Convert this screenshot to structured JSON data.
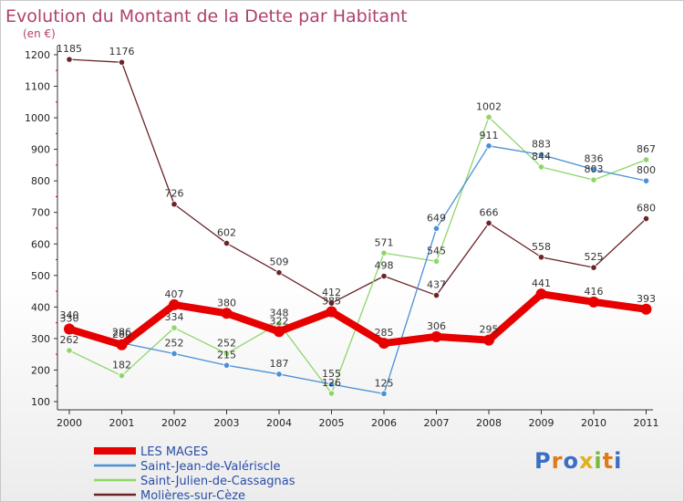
{
  "chart_data": {
    "type": "line",
    "title": "Evolution du Montant de la Dette par Habitant",
    "subtitle": "(en €)",
    "xlabel": "",
    "ylabel": "",
    "categories": [
      "2000",
      "2001",
      "2002",
      "2003",
      "2004",
      "2005",
      "2006",
      "2007",
      "2008",
      "2009",
      "2010",
      "2011"
    ],
    "y_ticks": [
      100,
      200,
      300,
      400,
      500,
      600,
      700,
      800,
      900,
      1000,
      1100,
      1200
    ],
    "ylim": [
      100,
      1200
    ],
    "grid": false,
    "legend_placement": "bottom-left",
    "series": [
      {
        "name": "LES MAGES",
        "color": "#e60000",
        "values": [
          330,
          280,
          407,
          380,
          322,
          385,
          285,
          306,
          295,
          441,
          416,
          393
        ]
      },
      {
        "name": "Saint-Jean-de-Valériscle",
        "color": "#4b8fd6",
        "values": [
          340,
          286,
          252,
          215,
          187,
          155,
          125,
          649,
          911,
          883,
          836,
          800
        ]
      },
      {
        "name": "Saint-Julien-de-Cassagnas",
        "color": "#8ed66b",
        "values": [
          262,
          182,
          334,
          252,
          348,
          126,
          571,
          545,
          1002,
          844,
          803,
          867
        ]
      },
      {
        "name": "Molières-sur-Cèze",
        "color": "#6b2428",
        "values": [
          1185,
          1176,
          726,
          602,
          509,
          412,
          498,
          437,
          666,
          558,
          525,
          680
        ]
      }
    ]
  },
  "brand": {
    "letters": [
      "P",
      "r",
      "o",
      "x",
      "i",
      "t",
      "i"
    ],
    "colors": [
      "#3a6fc4",
      "#e07a1a",
      "#3a6fc4",
      "#e0b21a",
      "#7ab83a",
      "#e07a1a",
      "#3a6fc4"
    ]
  },
  "colors": {
    "title": "#b0406e",
    "axis": "#222222",
    "legend_text": "#2b4ea8"
  }
}
